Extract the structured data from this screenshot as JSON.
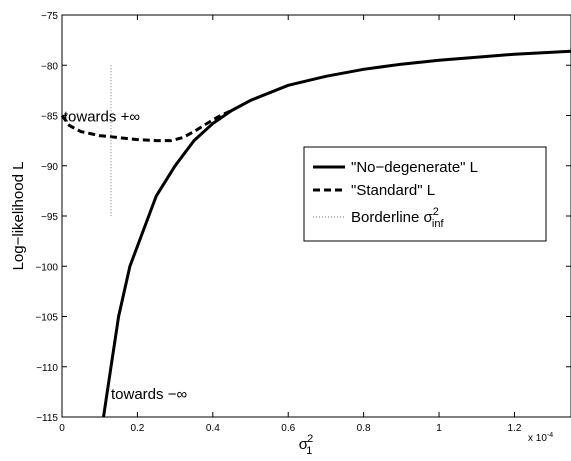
{
  "chart_data": {
    "type": "line",
    "xlabel": "σ",
    "xlabel_sub": "1",
    "xlabel_sup": "2",
    "ylabel": "Log−likelihood L",
    "x_multiplier": "x 10",
    "x_multiplier_exp": "-4",
    "xlim": [
      0,
      1.35
    ],
    "ylim": [
      -115,
      -75
    ],
    "x_ticks": [
      {
        "value": 0,
        "label": "0"
      },
      {
        "value": 0.2,
        "label": "0.2"
      },
      {
        "value": 0.4,
        "label": "0.4"
      },
      {
        "value": 0.6,
        "label": "0.6"
      },
      {
        "value": 0.8,
        "label": "0.8"
      },
      {
        "value": 1.0,
        "label": "1"
      },
      {
        "value": 1.2,
        "label": "1.2"
      }
    ],
    "y_ticks": [
      {
        "value": -75,
        "label": "−75"
      },
      {
        "value": -80,
        "label": "−80"
      },
      {
        "value": -85,
        "label": "−85"
      },
      {
        "value": -90,
        "label": "−90"
      },
      {
        "value": -95,
        "label": "−95"
      },
      {
        "value": -100,
        "label": "−100"
      },
      {
        "value": -105,
        "label": "−105"
      },
      {
        "value": -110,
        "label": "−110"
      },
      {
        "value": -115,
        "label": "−115"
      }
    ],
    "grid": false,
    "legend_position": "center-right",
    "series": [
      {
        "name": "\"No−degenerate\" L",
        "style": "solid",
        "x": [
          0.11,
          0.13,
          0.15,
          0.18,
          0.21,
          0.25,
          0.3,
          0.35,
          0.4,
          0.45,
          0.5,
          0.6,
          0.7,
          0.8,
          0.9,
          1.0,
          1.1,
          1.2,
          1.35
        ],
        "y": [
          -115.0,
          -110.0,
          -105.0,
          -100.0,
          -97.0,
          -93.0,
          -90.0,
          -87.5,
          -85.8,
          -84.5,
          -83.5,
          -82.0,
          -81.1,
          -80.4,
          -79.9,
          -79.5,
          -79.2,
          -78.9,
          -78.6
        ]
      },
      {
        "name": "\"Standard\" L",
        "style": "dashed",
        "x": [
          0.0,
          0.02,
          0.05,
          0.1,
          0.15,
          0.2,
          0.25,
          0.29,
          0.32,
          0.35,
          0.38,
          0.42,
          0.45
        ],
        "y": [
          -85.0,
          -86.0,
          -86.6,
          -87.0,
          -87.2,
          -87.4,
          -87.5,
          -87.5,
          -87.2,
          -86.6,
          -85.9,
          -85.0,
          -84.5
        ]
      },
      {
        "name": "Borderline σ",
        "name_sub": "inf",
        "name_sup": "2",
        "style": "dotted",
        "x": [
          0.13,
          0.13
        ],
        "y": [
          -80,
          -95
        ]
      }
    ],
    "annotations": [
      {
        "text": "towards +∞",
        "x": 0.005,
        "y": -85.6
      },
      {
        "text": "towards −∞",
        "x": 0.13,
        "y": -113.2
      }
    ]
  }
}
